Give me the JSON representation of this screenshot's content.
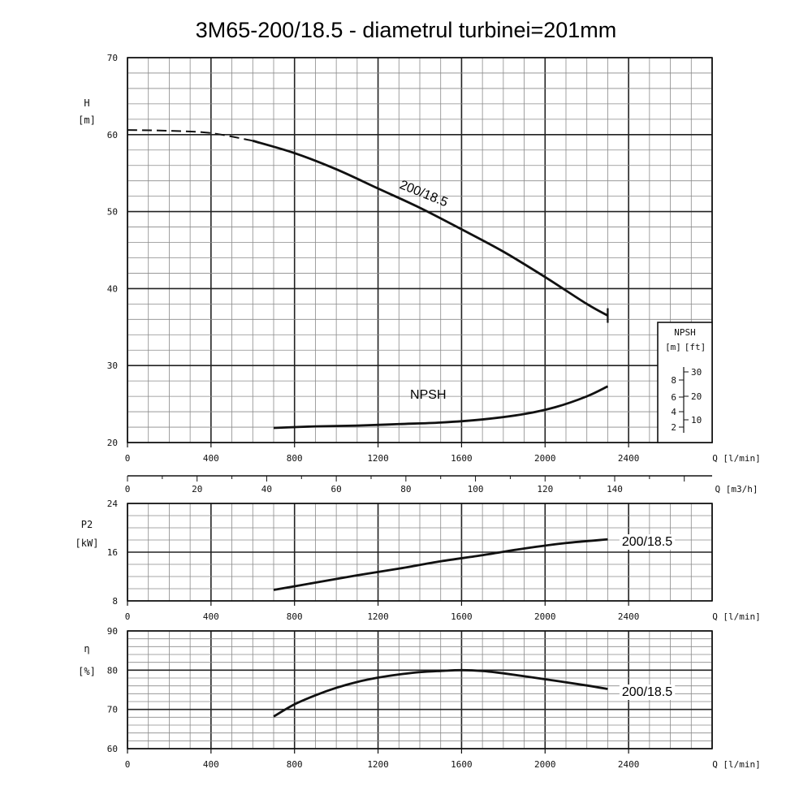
{
  "title": "3M65-200/18.5 - diametrul turbinei=201mm",
  "chart_data": [
    {
      "type": "line",
      "id": "head",
      "ylabel": "H",
      "yunit": "[m]",
      "xlabel": "Q [l/min]",
      "xlim": [
        0,
        2800
      ],
      "ylim": [
        20,
        70
      ],
      "xticks": [
        "0",
        "400",
        "800",
        "1200",
        "1600",
        "2000",
        "2400"
      ],
      "yticks": [
        "20",
        "30",
        "40",
        "50",
        "60",
        "70"
      ],
      "grid": true,
      "series": [
        {
          "name": "200/18.5",
          "x": [
            0,
            200,
            400,
            600,
            800,
            1000,
            1200,
            1400,
            1600,
            1800,
            2000,
            2200,
            2300
          ],
          "y": [
            60.6,
            60.5,
            60.2,
            59.2,
            57.6,
            55.5,
            53.0,
            50.5,
            47.7,
            44.8,
            41.5,
            38.0,
            36.5
          ],
          "dashed_until": 600
        },
        {
          "name": "NPSH",
          "x": [
            700,
            900,
            1100,
            1300,
            1500,
            1700,
            1900,
            2050,
            2200,
            2300
          ],
          "y": [
            21.9,
            22.1,
            22.2,
            22.4,
            22.6,
            23.0,
            23.7,
            24.6,
            26.0,
            27.3
          ]
        }
      ],
      "secondary_x": {
        "label": "Q [m3/h]",
        "lim": [
          0,
          168
        ],
        "ticks": [
          "0",
          "20",
          "40",
          "60",
          "80",
          "100",
          "120",
          "140"
        ]
      },
      "npsh_scale": {
        "title": "NPSH",
        "units": [
          "[m]",
          "[ft]"
        ],
        "m_ticks": [
          "8",
          "6",
          "4",
          "2"
        ],
        "ft_ticks": [
          "30",
          "20",
          "10"
        ]
      }
    },
    {
      "type": "line",
      "id": "power",
      "ylabel": "P2",
      "yunit": "[kW]",
      "xlabel": "Q [l/min]",
      "xlim": [
        0,
        2800
      ],
      "ylim": [
        8,
        24
      ],
      "xticks": [
        "0",
        "400",
        "800",
        "1200",
        "1600",
        "2000",
        "2400"
      ],
      "yticks": [
        "8",
        "16",
        "24"
      ],
      "grid": true,
      "series": [
        {
          "name": "200/18.5",
          "x": [
            700,
            900,
            1100,
            1300,
            1500,
            1700,
            1900,
            2100,
            2300
          ],
          "y": [
            9.8,
            11.0,
            12.2,
            13.3,
            14.5,
            15.5,
            16.6,
            17.5,
            18.1
          ]
        }
      ]
    },
    {
      "type": "line",
      "id": "efficiency",
      "ylabel": "η",
      "yunit": "[%]",
      "xlabel": "Q [l/min]",
      "xlim": [
        0,
        2800
      ],
      "ylim": [
        60,
        90
      ],
      "xticks": [
        "0",
        "400",
        "800",
        "1200",
        "1600",
        "2000",
        "2400"
      ],
      "yticks": [
        "60",
        "70",
        "80",
        "90"
      ],
      "grid": true,
      "series": [
        {
          "name": "200/18.5",
          "x": [
            700,
            800,
            900,
            1000,
            1100,
            1200,
            1300,
            1400,
            1500,
            1600,
            1700,
            1800,
            2000,
            2200,
            2300
          ],
          "y": [
            68.2,
            71.3,
            73.6,
            75.5,
            77.0,
            78.1,
            78.9,
            79.5,
            79.8,
            80.0,
            79.8,
            79.2,
            77.7,
            76.1,
            75.2
          ]
        }
      ]
    }
  ]
}
